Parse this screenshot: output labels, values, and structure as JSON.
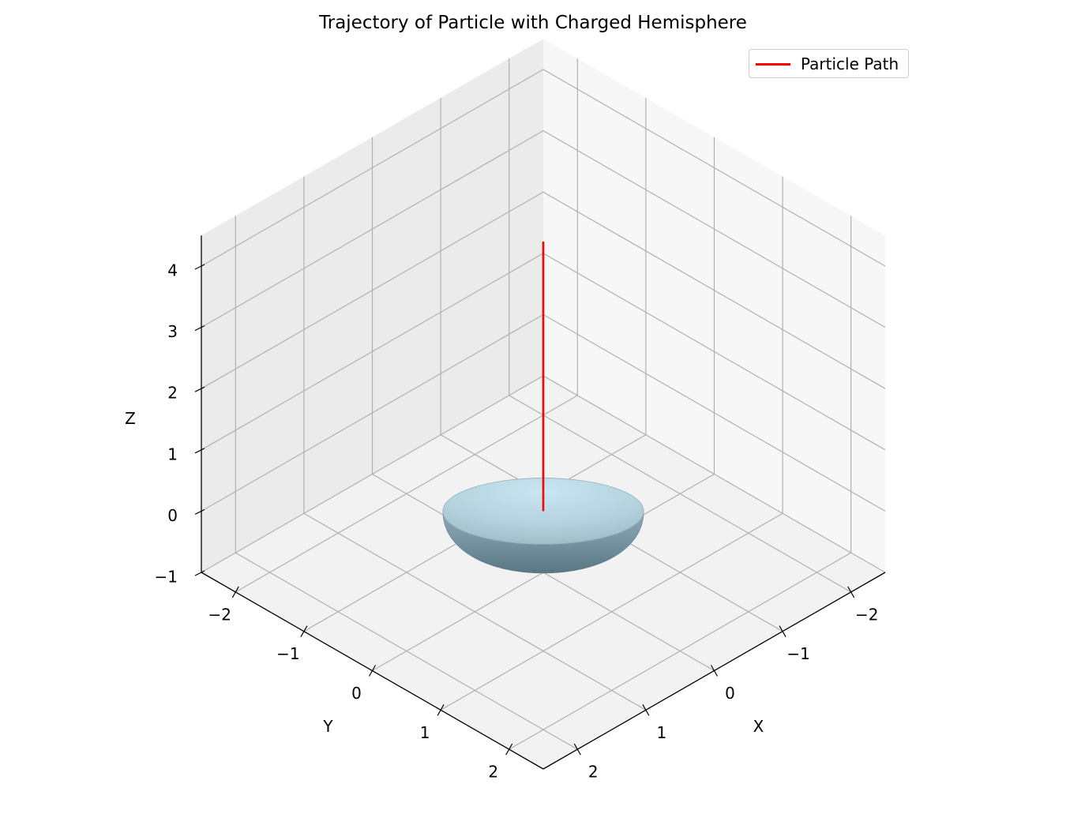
{
  "chart_data": {
    "type": "line3d",
    "title": "Trajectory of Particle with Charged Hemisphere",
    "xlabel": "X",
    "ylabel": "Y",
    "zlabel": "Z",
    "xlim": [
      -2.5,
      2.5
    ],
    "ylim": [
      -2.5,
      2.5
    ],
    "zlim": [
      -1,
      4.5
    ],
    "xticks": [
      -2,
      -1,
      0,
      1,
      2
    ],
    "yticks": [
      -2,
      -1,
      0,
      1,
      2
    ],
    "zticks": [
      -1,
      0,
      1,
      2,
      3,
      4
    ],
    "xtick_labels": [
      "−2",
      "−1",
      "0",
      "1",
      "2"
    ],
    "ytick_labels": [
      "−2",
      "−1",
      "0",
      "1",
      "2"
    ],
    "ztick_labels": [
      "−1",
      "0",
      "1",
      "2",
      "3",
      "4"
    ],
    "grid": true,
    "legend_position": "top-right",
    "series": [
      {
        "name": "Particle Path",
        "color": "#ff0000",
        "x": [
          0,
          0
        ],
        "y": [
          0,
          0
        ],
        "z": [
          0,
          4.4
        ]
      }
    ],
    "surface": {
      "shape": "hemisphere",
      "radius": 1,
      "center": [
        0,
        0,
        0
      ],
      "orientation": "lower half (z ≤ 0)",
      "color": "#add8e6"
    }
  }
}
